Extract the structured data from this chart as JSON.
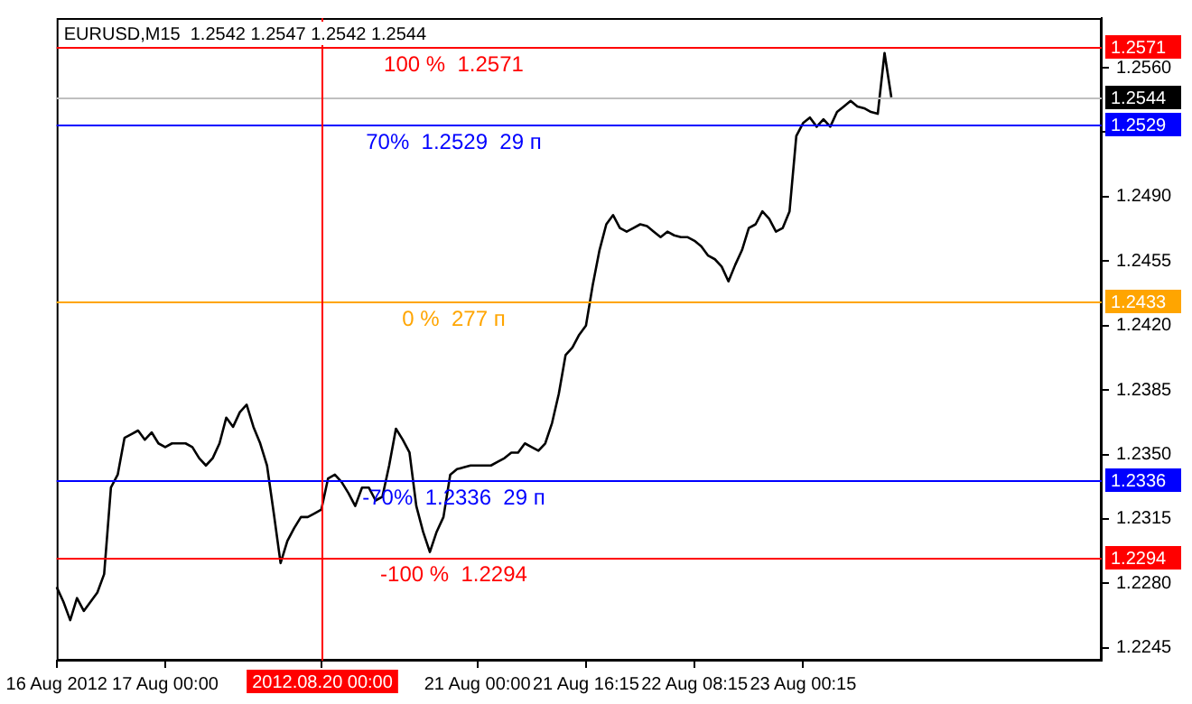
{
  "chart_data": {
    "type": "line",
    "title": "EURUSD,M15  1.2542 1.2547 1.2542 1.2544",
    "categories": [
      "16 Aug 2012",
      null,
      null,
      null,
      null,
      null,
      null,
      null,
      null,
      null,
      null,
      null,
      null,
      null,
      null,
      null,
      "17 Aug 00:00",
      null,
      null,
      null,
      null,
      null,
      null,
      null,
      null,
      null,
      null,
      null,
      null,
      null,
      null,
      null,
      null,
      null,
      null,
      null,
      null,
      null,
      null,
      "2012.08.20 00:00",
      null,
      null,
      null,
      null,
      null,
      null,
      null,
      null,
      null,
      null,
      null,
      null,
      null,
      null,
      null,
      null,
      null,
      null,
      null,
      null,
      null,
      null,
      "21 Aug 00:00",
      null,
      null,
      null,
      null,
      null,
      null,
      null,
      null,
      null,
      null,
      null,
      null,
      null,
      null,
      null,
      "21 Aug 16:15",
      null,
      null,
      null,
      null,
      null,
      null,
      null,
      null,
      null,
      null,
      null,
      null,
      null,
      null,
      null,
      "22 Aug 08:15",
      null,
      null,
      null,
      null,
      null,
      null,
      null,
      null,
      null,
      null,
      null,
      null,
      null,
      null,
      null,
      "23 Aug 00:15",
      null,
      null,
      null,
      null,
      null,
      null,
      null,
      null,
      null,
      null,
      null,
      null,
      null,
      null,
      null,
      null,
      null,
      null,
      null,
      null,
      null,
      null,
      null,
      null,
      null,
      null,
      null,
      null,
      null,
      null,
      null,
      null,
      null,
      null,
      null,
      null,
      null,
      null,
      null,
      null,
      null,
      null,
      null,
      null
    ],
    "series": [
      {
        "color": "#000000",
        "values": [
          1.2278,
          1.227,
          1.226,
          1.2272,
          1.2265,
          1.227,
          1.2275,
          1.2285,
          1.2332,
          1.2339,
          1.2359,
          1.2361,
          1.2363,
          1.2358,
          1.2362,
          1.2356,
          1.2354,
          1.2356,
          1.2356,
          1.2356,
          1.2354,
          1.2348,
          1.2344,
          1.2348,
          1.2356,
          1.237,
          1.2365,
          1.2373,
          1.2377,
          1.2365,
          1.2356,
          1.2344,
          1.2318,
          1.2291,
          1.2303,
          1.231,
          1.2316,
          1.2316,
          1.2318,
          1.232,
          1.2337,
          1.2339,
          1.2335,
          1.2329,
          1.2322,
          1.2332,
          1.2332,
          1.2325,
          1.2327,
          1.2344,
          1.2364,
          1.2358,
          1.2351,
          1.2322,
          1.2308,
          1.2297,
          1.2308,
          1.2316,
          1.2339,
          1.2342,
          1.2343,
          1.2344,
          1.2344,
          1.2344,
          1.2344,
          1.2346,
          1.2348,
          1.2351,
          1.2351,
          1.2356,
          1.2354,
          1.2352,
          1.2356,
          1.2367,
          1.2383,
          1.2404,
          1.2408,
          1.2415,
          1.242,
          1.2442,
          1.2461,
          1.2475,
          1.248,
          1.2473,
          1.2471,
          1.2473,
          1.2475,
          1.2474,
          1.2471,
          1.2468,
          1.2471,
          1.2469,
          1.2468,
          1.2468,
          1.2466,
          1.2463,
          1.2458,
          1.2456,
          1.2452,
          1.2444,
          1.2453,
          1.2461,
          1.2473,
          1.2475,
          1.2482,
          1.2478,
          1.2471,
          1.2473,
          1.2482,
          1.2523,
          1.253,
          1.2533,
          1.2528,
          1.2532,
          1.2528,
          1.2536,
          1.2539,
          1.2542,
          1.2539,
          1.2538,
          1.2536,
          1.2535,
          1.2568,
          1.2544,
          null,
          null,
          null,
          null,
          null,
          null,
          null,
          null,
          null,
          null,
          null,
          null,
          null,
          null,
          null,
          null,
          null,
          null,
          null,
          null,
          null,
          null,
          null,
          null,
          null,
          null,
          null,
          null,
          null,
          null,
          null
        ]
      }
    ],
    "ylim": [
      1.2238,
      1.2587
    ],
    "yticks": [
      1.2245,
      {
        "value": 1.228,
        "label": "1.2280"
      },
      1.2315,
      {
        "value": 1.235,
        "label": "1.2350"
      },
      1.2385,
      {
        "value": 1.242,
        "label": "1.2420"
      },
      1.2455,
      {
        "value": 1.249,
        "label": "1.2490"
      },
      {
        "value": 1.2525,
        "label": null
      },
      {
        "value": 1.256,
        "label": "1.2560"
      }
    ],
    "ref_lines": [
      {
        "axis": "x",
        "value": "2012.08.20 00:00",
        "color": "#ff0000"
      },
      {
        "axis": "y",
        "value": 1.2571,
        "label": "1.2571",
        "color": "#ff0000"
      },
      {
        "axis": "y",
        "value": 1.2544,
        "label": "1.2544",
        "color": "#c0c0c0"
      },
      {
        "axis": "y",
        "value": 1.2529,
        "label": "1.2529",
        "color": "#0000ff"
      },
      {
        "axis": "y",
        "value": 1.2433,
        "label": "1.2433",
        "color": "#ffa500"
      },
      {
        "axis": "y",
        "value": 1.2336,
        "label": "1.2336",
        "color": "#0000ff"
      },
      {
        "axis": "y",
        "value": 1.2294,
        "label": "1.2294",
        "color": "#ff0000"
      }
    ],
    "annotations": [
      {
        "text": "100 %  1.2571",
        "y": 1.2571
      },
      {
        "text": "70%  1.2529  29 п",
        "y": 1.2529
      },
      {
        "text": "0 %  277 п",
        "y": 1.2433
      },
      {
        "text": "-70%  1.2336  29 п",
        "y": 1.2336
      },
      {
        "text": "-100 %  1.2294",
        "y": 1.2294
      }
    ],
    "grid": false,
    "legend": false
  }
}
